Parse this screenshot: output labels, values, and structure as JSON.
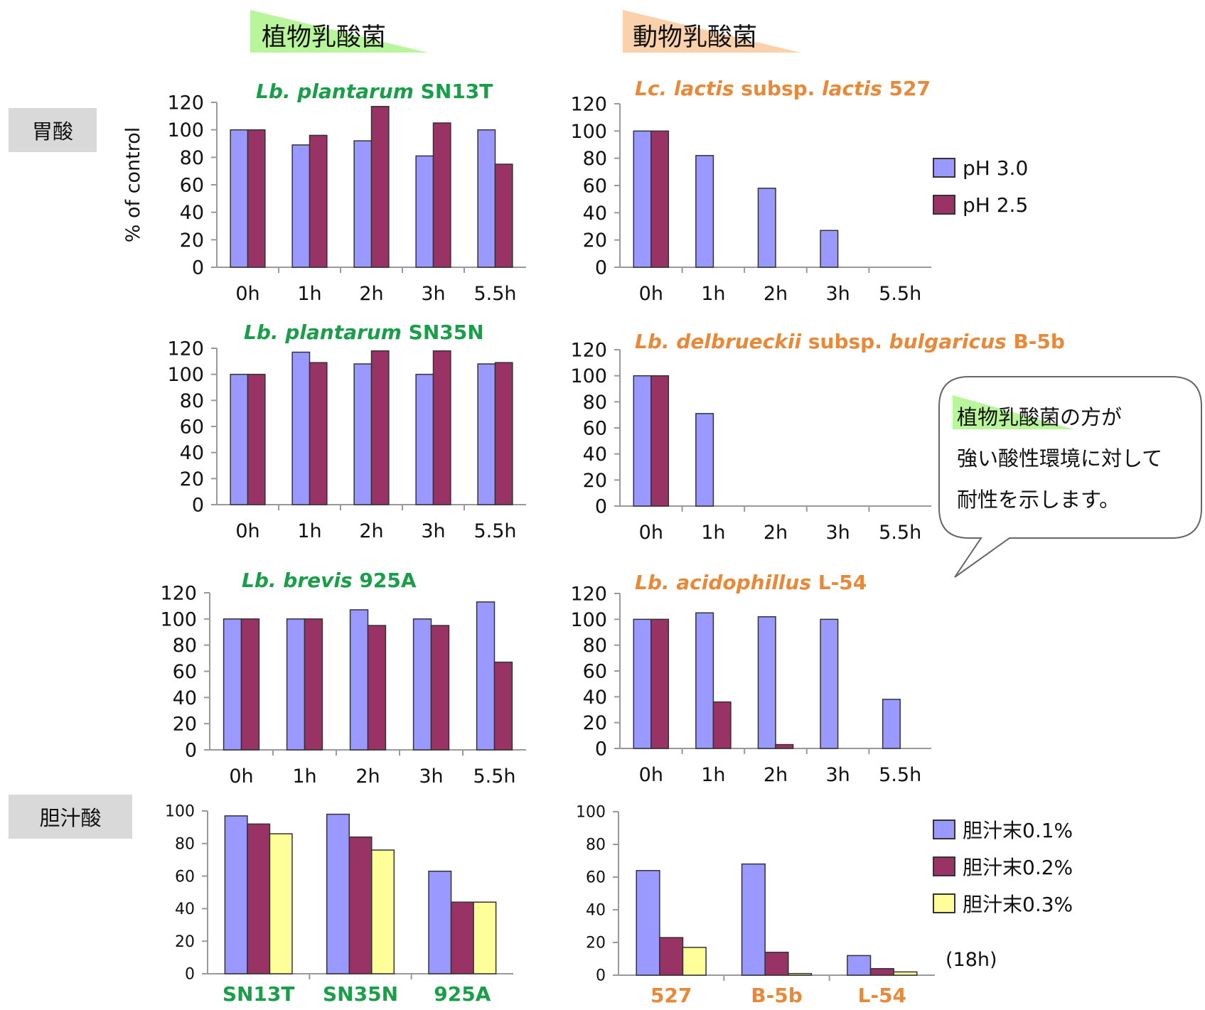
{
  "header": {
    "plant": "植物乳酸菌",
    "animal": "動物乳酸菌"
  },
  "rows": {
    "gastric": "胃酸",
    "bile": "胆汁酸"
  },
  "callout": {
    "line1_highlight": "植物乳酸菌",
    "line1_rest": "の方が",
    "line2": "強い酸性環境に対して",
    "line3": "耐性を示します。"
  },
  "legend_ph": [
    "pH 3.0",
    "pH 2.5"
  ],
  "legend_bile": [
    "胆汁末0.1%",
    "胆汁末0.2%",
    "胆汁末0.3%"
  ],
  "bile_note": "(18h)",
  "colors": {
    "series1": "#9999ff",
    "series2": "#993366",
    "series3": "#ffff99",
    "plant_title": "#1a9e4a",
    "animal_title": "#e8893a",
    "plant_highlight": "#b9f59a",
    "animal_highlight": "#fbd1ab"
  },
  "chart_data": [
    {
      "id": "sn13t",
      "type": "bar",
      "title_parts": [
        {
          "t": "Lb. plantarum",
          "i": true
        },
        {
          "t": " SN13T",
          "i": false
        }
      ],
      "title_color": "plant",
      "ylabel": "% of control",
      "categories": [
        "0h",
        "1h",
        "2h",
        "3h",
        "5.5h"
      ],
      "ylim": [
        0,
        120
      ],
      "yticks": [
        0,
        20,
        40,
        60,
        80,
        100,
        120
      ],
      "series": [
        {
          "values": [
            100,
            89,
            92,
            81,
            100
          ]
        },
        {
          "values": [
            100,
            96,
            117,
            105,
            75
          ]
        }
      ]
    },
    {
      "id": "sn35n",
      "type": "bar",
      "title_parts": [
        {
          "t": "Lb. plantarum",
          "i": true
        },
        {
          "t": " SN35N",
          "i": false
        }
      ],
      "title_color": "plant",
      "categories": [
        "0h",
        "1h",
        "2h",
        "3h",
        "5.5h"
      ],
      "ylim": [
        0,
        120
      ],
      "yticks": [
        0,
        20,
        40,
        60,
        80,
        100,
        120
      ],
      "series": [
        {
          "values": [
            100,
            117,
            108,
            100,
            108
          ]
        },
        {
          "values": [
            100,
            109,
            118,
            118,
            109
          ]
        }
      ]
    },
    {
      "id": "925a",
      "type": "bar",
      "title_parts": [
        {
          "t": "Lb. brevis",
          "i": true
        },
        {
          "t": " 925A",
          "i": false
        }
      ],
      "title_color": "plant",
      "categories": [
        "0h",
        "1h",
        "2h",
        "3h",
        "5.5h"
      ],
      "ylim": [
        0,
        120
      ],
      "yticks": [
        0,
        20,
        40,
        60,
        80,
        100,
        120
      ],
      "series": [
        {
          "values": [
            100,
            100,
            107,
            100,
            113
          ]
        },
        {
          "values": [
            100,
            100,
            95,
            95,
            67
          ]
        }
      ]
    },
    {
      "id": "527",
      "type": "bar",
      "title_parts": [
        {
          "t": "Lc. lactis",
          "i": true
        },
        {
          "t": " subsp. ",
          "i": false
        },
        {
          "t": "lactis",
          "i": true
        },
        {
          "t": " 527",
          "i": false
        }
      ],
      "title_color": "animal",
      "categories": [
        "0h",
        "1h",
        "2h",
        "3h",
        "5.5h"
      ],
      "ylim": [
        0,
        120
      ],
      "yticks": [
        0,
        20,
        40,
        60,
        80,
        100,
        120
      ],
      "series": [
        {
          "values": [
            100,
            82,
            58,
            27,
            0
          ]
        },
        {
          "values": [
            100,
            0,
            0,
            0,
            0
          ]
        }
      ]
    },
    {
      "id": "b5b",
      "type": "bar",
      "title_parts": [
        {
          "t": "Lb. delbrueckii",
          "i": true
        },
        {
          "t": " subsp. ",
          "i": false
        },
        {
          "t": "bulgaricus",
          "i": true
        },
        {
          "t": " B-5b",
          "i": false
        }
      ],
      "title_color": "animal",
      "categories": [
        "0h",
        "1h",
        "2h",
        "3h",
        "5.5h"
      ],
      "ylim": [
        0,
        120
      ],
      "yticks": [
        0,
        20,
        40,
        60,
        80,
        100,
        120
      ],
      "series": [
        {
          "values": [
            100,
            71,
            0,
            0,
            0
          ]
        },
        {
          "values": [
            100,
            0,
            0,
            0,
            0
          ]
        }
      ]
    },
    {
      "id": "l54",
      "type": "bar",
      "title_parts": [
        {
          "t": "Lb. acidophillus",
          "i": true
        },
        {
          "t": " L-54",
          "i": false
        }
      ],
      "title_color": "animal",
      "categories": [
        "0h",
        "1h",
        "2h",
        "3h",
        "5.5h"
      ],
      "ylim": [
        0,
        120
      ],
      "yticks": [
        0,
        20,
        40,
        60,
        80,
        100,
        120
      ],
      "series": [
        {
          "values": [
            100,
            105,
            102,
            100,
            38
          ]
        },
        {
          "values": [
            100,
            36,
            3,
            0,
            0
          ]
        }
      ]
    },
    {
      "id": "bile_plant",
      "type": "bar",
      "categories": [
        "SN13T",
        "SN35N",
        "925A"
      ],
      "category_color": "plant",
      "ylim": [
        0,
        100
      ],
      "yticks": [
        0,
        20,
        40,
        60,
        80,
        100
      ],
      "series": [
        {
          "values": [
            97,
            98,
            63
          ]
        },
        {
          "values": [
            92,
            84,
            44
          ]
        },
        {
          "values": [
            86,
            76,
            44
          ]
        }
      ]
    },
    {
      "id": "bile_animal",
      "type": "bar",
      "categories": [
        "527",
        "B-5b",
        "L-54"
      ],
      "category_color": "animal",
      "ylim": [
        0,
        100
      ],
      "yticks": [
        0,
        20,
        40,
        60,
        80,
        100
      ],
      "series": [
        {
          "values": [
            64,
            68,
            12
          ]
        },
        {
          "values": [
            23,
            14,
            4
          ]
        },
        {
          "values": [
            17,
            1,
            2
          ]
        }
      ]
    }
  ]
}
